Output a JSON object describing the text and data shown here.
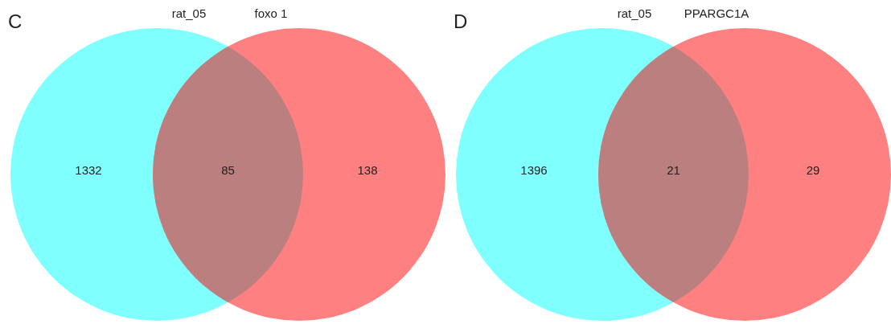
{
  "chart_data": [
    {
      "type": "other",
      "title": "C",
      "categories": [
        "rat_05",
        null,
        "foxo 1"
      ],
      "values": [
        1332,
        85,
        138
      ],
      "data_labels": true,
      "colors": [
        "#80ffff",
        "#bc7f7f",
        "#ff8080"
      ]
    },
    {
      "type": "other",
      "title": "D",
      "categories": [
        "rat_05",
        null,
        "PPARGC1A"
      ],
      "values": [
        1396,
        21,
        29
      ],
      "data_labels": true,
      "colors": [
        "#80ffff",
        "#bc7f7f",
        "#ff8080"
      ]
    }
  ]
}
